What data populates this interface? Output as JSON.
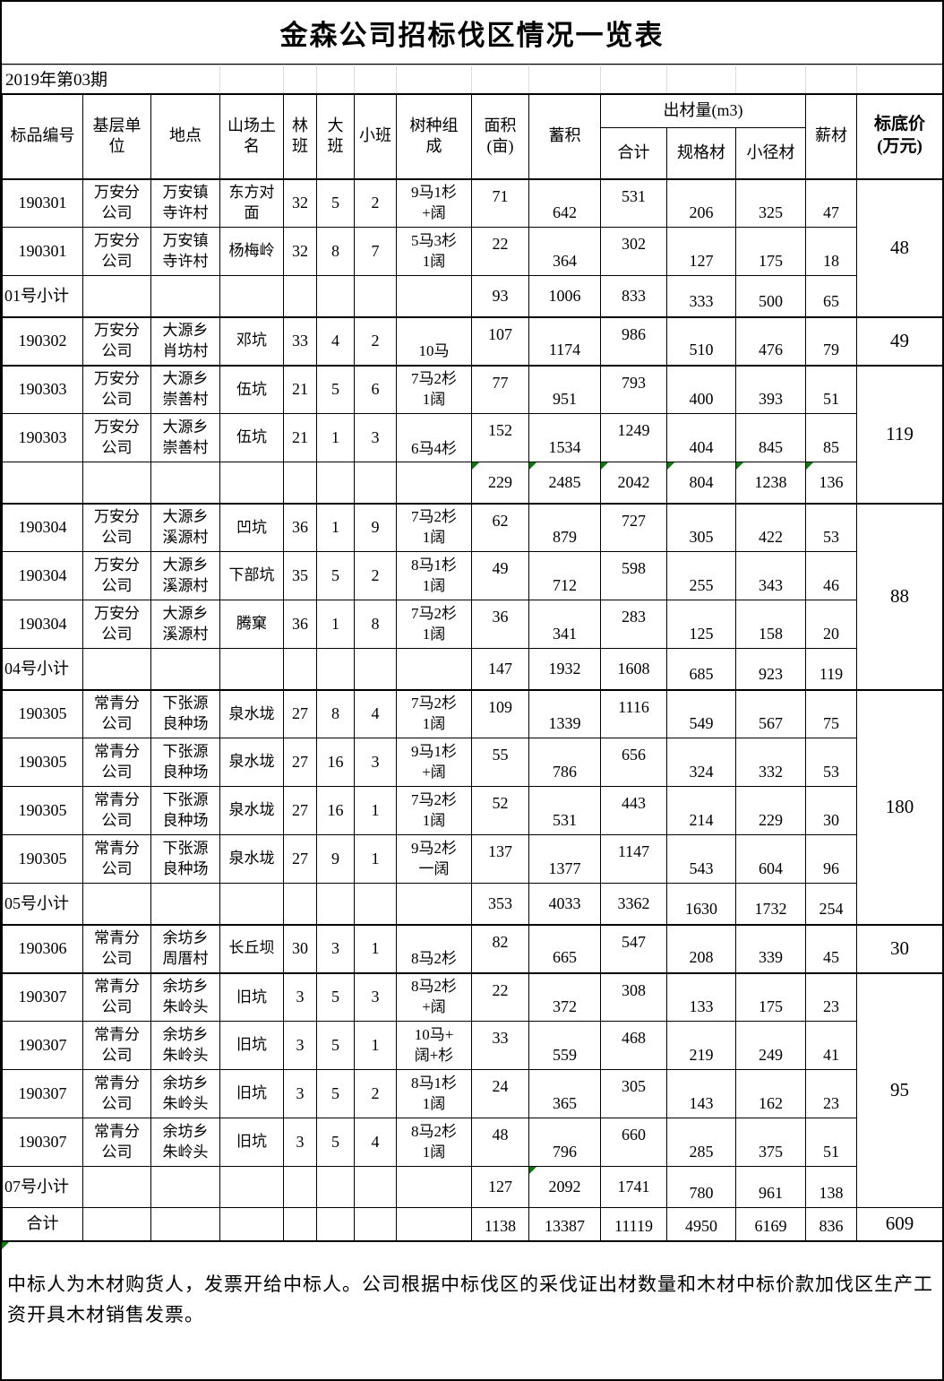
{
  "title": "金森公司招标伐区情况一览表",
  "period": "2019年第03期",
  "colors": {
    "error_marker_green": "#008000"
  },
  "header": {
    "item_no": "标品编号",
    "unit": "基层单\n位",
    "place": "地点",
    "hill_name": "山场土\n名",
    "forest_class": "林\n班",
    "large_class": "大\n班",
    "small_class": "小班",
    "species": "树种组\n成",
    "area": "面积\n(亩)",
    "volume": "蓄积",
    "output_group": "出材量(m3)",
    "output_total": "合计",
    "output_spec": "规格材",
    "output_small": "小径材",
    "firewood": "薪材",
    "base_price": "标底价\n(万元)"
  },
  "rows": [
    {
      "type": "data",
      "section": true,
      "id": "190301",
      "unit": "万安分\n公司",
      "place": "万安镇\n寺许村",
      "hill": "东方对\n面",
      "lin": "32",
      "da": "5",
      "xiao": "2",
      "comp": "9马1杉\n+阔",
      "area": "71",
      "vol": "642",
      "total": "531",
      "spec": "206",
      "small": "325",
      "fire": "47",
      "price": "48",
      "price_span": 3
    },
    {
      "type": "data",
      "id": "190301",
      "unit": "万安分\n公司",
      "place": "万安镇\n寺许村",
      "hill": "杨梅岭",
      "lin": "32",
      "da": "8",
      "xiao": "7",
      "comp": "5马3杉\n1阔",
      "area": "22",
      "vol": "364",
      "total": "302",
      "spec": "127",
      "small": "175",
      "fire": "18"
    },
    {
      "type": "sub",
      "label": "01号小计",
      "area": "93",
      "vol": "1006",
      "total": "833",
      "spec": "333",
      "small": "500",
      "fire": "65"
    },
    {
      "type": "data",
      "section": true,
      "id": "190302",
      "unit": "万安分\n公司",
      "place": "大源乡\n肖坊村",
      "hill": "邓坑",
      "lin": "33",
      "da": "4",
      "xiao": "2",
      "comp": "10马",
      "area": "107",
      "vol": "1174",
      "total": "986",
      "spec": "510",
      "small": "476",
      "fire": "79",
      "price": "49",
      "price_span": 1
    },
    {
      "type": "data",
      "section": true,
      "id": "190303",
      "unit": "万安分\n公司",
      "place": "大源乡\n崇善村",
      "hill": "伍坑",
      "lin": "21",
      "da": "5",
      "xiao": "6",
      "comp": "7马2杉\n1阔",
      "area": "77",
      "vol": "951",
      "total": "793",
      "spec": "400",
      "small": "393",
      "fire": "51",
      "price": "119",
      "price_span": 3
    },
    {
      "type": "data",
      "id": "190303",
      "unit": "万安分\n公司",
      "place": "大源乡\n崇善村",
      "hill": "伍坑",
      "lin": "21",
      "da": "1",
      "xiao": "3",
      "comp": "6马4杉",
      "area": "152",
      "vol": "1534",
      "total": "1249",
      "spec": "404",
      "small": "845",
      "fire": "85"
    },
    {
      "type": "sub2",
      "label": "",
      "area": "229",
      "vol": "2485",
      "total": "2042",
      "spec": "804",
      "small": "1238",
      "fire": "136",
      "green": [
        "area",
        "vol",
        "total",
        "spec",
        "small",
        "fire"
      ]
    },
    {
      "type": "data",
      "section": true,
      "id": "190304",
      "unit": "万安分\n公司",
      "place": "大源乡\n溪源村",
      "hill": "凹坑",
      "lin": "36",
      "da": "1",
      "xiao": "9",
      "comp": "7马2杉\n1阔",
      "area": "62",
      "vol": "879",
      "total": "727",
      "spec": "305",
      "small": "422",
      "fire": "53",
      "price": "88",
      "price_span": 4
    },
    {
      "type": "data",
      "id": "190304",
      "unit": "万安分\n公司",
      "place": "大源乡\n溪源村",
      "hill": "下部坑",
      "lin": "35",
      "da": "5",
      "xiao": "2",
      "comp": "8马1杉\n1阔",
      "area": "49",
      "vol": "712",
      "total": "598",
      "spec": "255",
      "small": "343",
      "fire": "46"
    },
    {
      "type": "data",
      "id": "190304",
      "unit": "万安分\n公司",
      "place": "大源乡\n溪源村",
      "hill": "腾窠",
      "lin": "36",
      "da": "1",
      "xiao": "8",
      "comp": "7马2杉\n1阔",
      "area": "36",
      "vol": "341",
      "total": "283",
      "spec": "125",
      "small": "158",
      "fire": "20"
    },
    {
      "type": "sub",
      "label": "04号小计",
      "area": "147",
      "vol": "1932",
      "total": "1608",
      "spec": "685",
      "small": "923",
      "fire": "119"
    },
    {
      "type": "data",
      "section": true,
      "id": "190305",
      "unit": "常青分\n公司",
      "place": "下张源\n良种场",
      "hill": "泉水垅",
      "lin": "27",
      "da": "8",
      "xiao": "4",
      "comp": "7马2杉\n1阔",
      "area": "109",
      "vol": "1339",
      "total": "1116",
      "spec": "549",
      "small": "567",
      "fire": "75",
      "price": "180",
      "price_span": 5
    },
    {
      "type": "data",
      "id": "190305",
      "unit": "常青分\n公司",
      "place": "下张源\n良种场",
      "hill": "泉水垅",
      "lin": "27",
      "da": "16",
      "xiao": "3",
      "comp": "9马1杉\n+阔",
      "area": "55",
      "vol": "786",
      "total": "656",
      "spec": "324",
      "small": "332",
      "fire": "53"
    },
    {
      "type": "data",
      "id": "190305",
      "unit": "常青分\n公司",
      "place": "下张源\n良种场",
      "hill": "泉水垅",
      "lin": "27",
      "da": "16",
      "xiao": "1",
      "comp": "7马2杉\n1阔",
      "area": "52",
      "vol": "531",
      "total": "443",
      "spec": "214",
      "small": "229",
      "fire": "30"
    },
    {
      "type": "data",
      "id": "190305",
      "unit": "常青分\n公司",
      "place": "下张源\n良种场",
      "hill": "泉水垅",
      "lin": "27",
      "da": "9",
      "xiao": "1",
      "comp": "9马2杉\n一阔",
      "area": "137",
      "vol": "1377",
      "total": "1147",
      "spec": "543",
      "small": "604",
      "fire": "96"
    },
    {
      "type": "sub",
      "label": "05号小计",
      "area": "353",
      "vol": "4033",
      "total": "3362",
      "spec": "1630",
      "small": "1732",
      "fire": "254"
    },
    {
      "type": "data",
      "section": true,
      "id": "190306",
      "unit": "常青分\n公司",
      "place": "余坊乡\n周厝村",
      "hill": "长丘坝",
      "lin": "30",
      "da": "3",
      "xiao": "1",
      "comp": "8马2杉",
      "area": "82",
      "vol": "665",
      "total": "547",
      "spec": "208",
      "small": "339",
      "fire": "45",
      "price": "30",
      "price_span": 1
    },
    {
      "type": "data",
      "section": true,
      "id": "190307",
      "unit": "常青分\n公司",
      "place": "余坊乡\n朱岭头",
      "hill": "旧坑",
      "lin": "3",
      "da": "5",
      "xiao": "3",
      "comp": "8马2杉\n+阔",
      "area": "22",
      "vol": "372",
      "total": "308",
      "spec": "133",
      "small": "175",
      "fire": "23",
      "price": "95",
      "price_span": 5
    },
    {
      "type": "data",
      "id": "190307",
      "unit": "常青分\n公司",
      "place": "余坊乡\n朱岭头",
      "hill": "旧坑",
      "lin": "3",
      "da": "5",
      "xiao": "1",
      "comp": "10马+\n阔+杉",
      "area": "33",
      "vol": "559",
      "total": "468",
      "spec": "219",
      "small": "249",
      "fire": "41"
    },
    {
      "type": "data",
      "id": "190307",
      "unit": "常青分\n公司",
      "place": "余坊乡\n朱岭头",
      "hill": "旧坑",
      "lin": "3",
      "da": "5",
      "xiao": "2",
      "comp": "8马1杉\n1阔",
      "area": "24",
      "vol": "365",
      "total": "305",
      "spec": "143",
      "small": "162",
      "fire": "23"
    },
    {
      "type": "data",
      "id": "190307",
      "unit": "常青分\n公司",
      "place": "余坊乡\n朱岭头",
      "hill": "旧坑",
      "lin": "3",
      "da": "5",
      "xiao": "4",
      "comp": "8马2杉\n1阔",
      "area": "48",
      "vol": "796",
      "total": "660",
      "spec": "285",
      "small": "375",
      "fire": "51"
    },
    {
      "type": "sub",
      "label": "07号小计",
      "area": "127",
      "vol": "2092",
      "total": "1741",
      "spec": "780",
      "small": "961",
      "fire": "138",
      "green": [
        "vol"
      ]
    },
    {
      "type": "total",
      "label": "合计",
      "area": "1138",
      "vol": "13387",
      "total": "11119",
      "spec": "4950",
      "small": "6169",
      "fire": "836",
      "price": "609",
      "price_span": 1
    }
  ],
  "footer_note": "中标人为木材购货人，发票开给中标人。公司根据中标伐区的采伐证出材数量和木材中标价款加伐区生产工资开具木材销售发票。"
}
